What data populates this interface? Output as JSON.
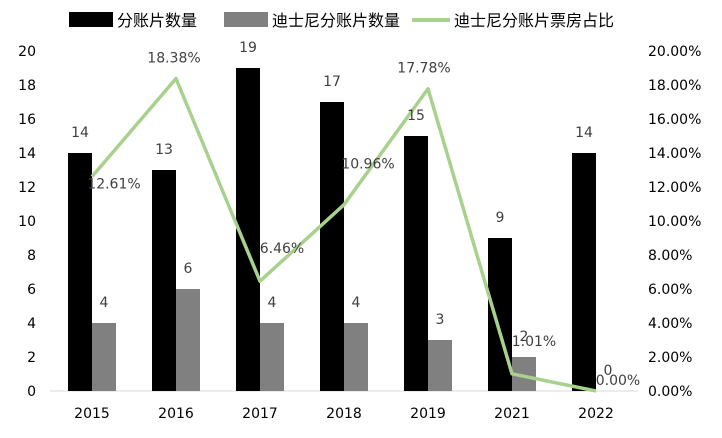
{
  "chart_data": {
    "type": "bar",
    "categories": [
      "2015",
      "2016",
      "2017",
      "2018",
      "2019",
      "2021",
      "2022"
    ],
    "series": [
      {
        "name": "分账片数量",
        "type": "bar",
        "axis": "left",
        "values": [
          14,
          13,
          19,
          17,
          15,
          9,
          14
        ],
        "color": "#000000"
      },
      {
        "name": "迪士尼分账片数量",
        "type": "bar",
        "axis": "left",
        "values": [
          4,
          6,
          4,
          4,
          3,
          2,
          0
        ],
        "color": "#808080"
      },
      {
        "name": "迪士尼分账片票房占比",
        "type": "line",
        "axis": "right",
        "values": [
          12.61,
          18.38,
          6.46,
          10.96,
          17.78,
          1.01,
          0.0
        ],
        "value_labels": [
          "12.61%",
          "18.38%",
          "6.46%",
          "10.96%",
          "17.78%",
          "1.01%",
          "0.00%"
        ],
        "color": "#a9d18e"
      }
    ],
    "y_left": {
      "min": 0,
      "max": 20,
      "ticks": [
        "0",
        "2",
        "4",
        "6",
        "8",
        "10",
        "12",
        "14",
        "16",
        "18",
        "20"
      ]
    },
    "y_right": {
      "min": 0,
      "max": 20,
      "unit": "%",
      "ticks": [
        "0.00%",
        "2.00%",
        "4.00%",
        "6.00%",
        "8.00%",
        "10.00%",
        "12.00%",
        "14.00%",
        "16.00%",
        "18.00%",
        "20.00%"
      ]
    },
    "legend_position": "top",
    "grid": false
  }
}
